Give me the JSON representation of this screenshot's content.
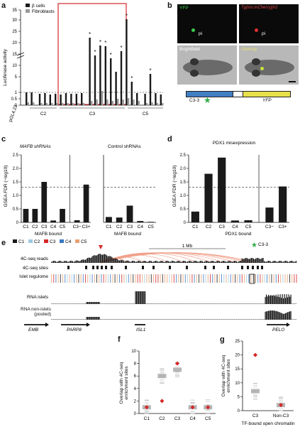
{
  "panel_letters": [
    "a",
    "b",
    "c",
    "d",
    "e",
    "f",
    "g"
  ],
  "panel_a": {
    "ylabel": "Luciferase activity",
    "legend": [
      "β cells",
      "Fibroblasts"
    ],
    "yticks": [
      "0",
      "0.5",
      "1",
      "1.5",
      "5",
      "10",
      "15",
      "20",
      "25",
      "30",
      "35"
    ],
    "group_labels": [
      "pGL4.23",
      "C2",
      "C3",
      "C5"
    ],
    "colors": {
      "beta": "#1a1a1a",
      "fibro": "#9a9a9a",
      "highlight": "#d62728"
    }
  },
  "panel_b": {
    "tile1_label": "YFP",
    "tile2_label": "Tg(ins:mCherry)jh2",
    "pi_label": "pi",
    "tile3_label": "Brightfield",
    "tile4_label": "Overlay",
    "construct_left": "C3-3",
    "construct_right": "YFP"
  },
  "chart_data": [
    {
      "type": "bar",
      "panel": "c",
      "title": "MAFB shRNAs",
      "ylabel": "GSEA FDR (−log10)",
      "xlabel": "MAFB bound",
      "categories": [
        "C1",
        "C2",
        "C3",
        "C4",
        "C5",
        "C3−",
        "C3+"
      ],
      "values": [
        0.5,
        0.5,
        1.5,
        0.07,
        0.5,
        0.08,
        1.4
      ],
      "ylim": [
        0,
        2.5
      ],
      "threshold": 1.3
    },
    {
      "type": "bar",
      "panel": "c",
      "title": "Control shRNAs",
      "xlabel": "MAFB bound",
      "categories": [
        "C1",
        "C2",
        "C3",
        "C4",
        "C5"
      ],
      "values": [
        0.2,
        0.18,
        0.62,
        0.05,
        0.02
      ],
      "ylim": [
        0,
        2.5
      ],
      "threshold": 1.3
    },
    {
      "type": "bar",
      "panel": "d",
      "title": "PDX1 misexpression",
      "ylabel": "GSEA FDR (−log10)",
      "xlabel": "PDX1 bound",
      "categories": [
        "C1",
        "C2",
        "C3",
        "C4",
        "C5",
        "C3−",
        "C3+"
      ],
      "values": [
        0.4,
        1.8,
        2.4,
        0.07,
        0.08,
        0.55,
        1.33
      ],
      "ylim": [
        0,
        2.5
      ],
      "threshold": 1.3
    },
    {
      "type": "scatter",
      "panel": "f",
      "ylabel": "Overlap with 4C-seq enrichment sites",
      "categories": [
        "C1",
        "C2",
        "C3",
        "C4",
        "C5"
      ],
      "observed": [
        1,
        2,
        8,
        1,
        1
      ],
      "median": [
        1,
        6,
        7,
        1,
        1
      ],
      "ylim": [
        0,
        10
      ]
    },
    {
      "type": "scatter",
      "panel": "g",
      "ylabel": "Overlap with 4C-seq enrichment sites",
      "xlabel": "TF-bound open chromatin",
      "categories": [
        "C3",
        "Non-C3"
      ],
      "observed": [
        20,
        2
      ],
      "median": [
        7,
        2
      ],
      "ylim": [
        0,
        25
      ]
    }
  ],
  "axis_ticks": {
    "c_y": [
      "0",
      "0.5",
      "1.0",
      "1.5",
      "2.0",
      "2.5"
    ],
    "d_y": [
      "0",
      "0.5",
      "1.0",
      "1.5",
      "2.0",
      "2.5"
    ],
    "f_y": [
      "0",
      "2",
      "4",
      "6",
      "8",
      "10"
    ],
    "g_y": [
      "0",
      "5",
      "10",
      "15",
      "20",
      "25"
    ]
  },
  "panel_e": {
    "legend": [
      {
        "label": "C1",
        "color": "#1a1a1a"
      },
      {
        "label": "C2",
        "color": "#9ecae1"
      },
      {
        "label": "C3",
        "color": "#d62728"
      },
      {
        "label": "C4",
        "color": "#3a78c2"
      },
      {
        "label": "C5",
        "color": "#e8a070"
      }
    ],
    "scale_label": "1 Mb",
    "marker_label": "C3-3",
    "track_labels": [
      "4C-seq reads",
      "4C-seq sites",
      "Islet regulome",
      "RNA islets",
      "RNA non-islets (pooled)"
    ],
    "genes": [
      "EMB",
      "PARP8",
      "ISL1",
      "PELO"
    ]
  }
}
